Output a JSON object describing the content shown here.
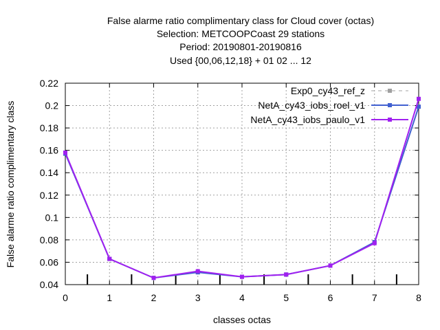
{
  "chart_data": {
    "type": "line",
    "title": [
      "False alarme ratio complimentary class  for Cloud cover (octas)",
      "Selection: METCOOPCoast     29 stations",
      "Period: 20190801-20190816",
      "Used {00,06,12,18} + 01 02 ... 12"
    ],
    "xlabel": "classes octas",
    "ylabel": "False alarme ratio complimentary class",
    "xlim": [
      0,
      8
    ],
    "ylim": [
      0.04,
      0.22
    ],
    "xticks": [
      "0",
      "1",
      "2",
      "3",
      "4",
      "5",
      "6",
      "7",
      "8"
    ],
    "yticks": [
      "0.04",
      "0.06",
      "0.08",
      "0.1",
      "0.12",
      "0.14",
      "0.16",
      "0.18",
      "0.2",
      "0.22"
    ],
    "grid": true,
    "legend_position": "top-right",
    "series": [
      {
        "name": "Exp0_cy43_ref_z",
        "color": "#a0a0a0",
        "dashed": true,
        "x": [
          0,
          1,
          2,
          3,
          4,
          5,
          6,
          7,
          8
        ],
        "y": [
          0.157,
          0.063,
          0.046,
          0.051,
          0.047,
          0.049,
          0.057,
          0.078,
          0.199
        ]
      },
      {
        "name": "NetA_cy43_iobs_roel_v1",
        "color": "#4060d0",
        "dashed": false,
        "x": [
          0,
          1,
          2,
          3,
          4,
          5,
          6,
          7,
          8
        ],
        "y": [
          0.157,
          0.063,
          0.046,
          0.051,
          0.047,
          0.049,
          0.057,
          0.078,
          0.199
        ]
      },
      {
        "name": "NetA_cy43_iobs_paulo_v1",
        "color": "#a020f0",
        "dashed": false,
        "x": [
          0,
          1,
          2,
          3,
          4,
          5,
          6,
          7,
          8
        ],
        "y": [
          0.158,
          0.063,
          0.046,
          0.052,
          0.047,
          0.049,
          0.057,
          0.077,
          0.206
        ]
      }
    ]
  }
}
